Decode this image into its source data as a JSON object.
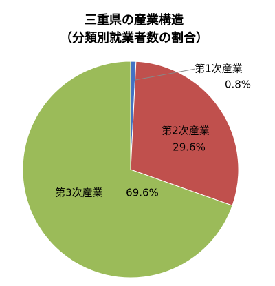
{
  "chart_data": {
    "type": "pie",
    "title": "三重県の産業構造",
    "subtitle": "（分類別就業者数の割合）",
    "categories": [
      "第1次産業",
      "第2次産業",
      "第3次産業"
    ],
    "values": [
      0.8,
      29.6,
      69.6
    ],
    "value_labels": [
      "0.8%",
      "29.6%",
      "69.6%"
    ],
    "colors": [
      "#4472c4",
      "#c0504d",
      "#9bbb59"
    ]
  }
}
